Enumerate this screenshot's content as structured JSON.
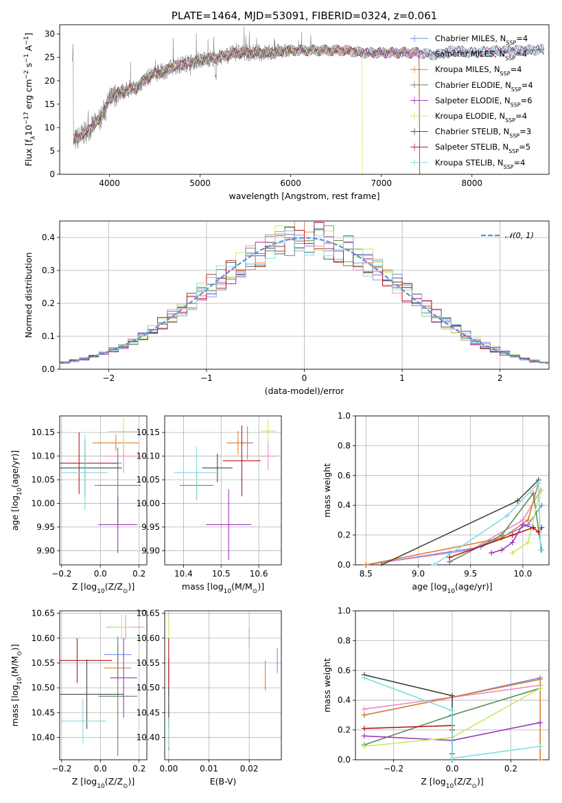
{
  "colors": {
    "Chabrier MILES": "#6b8ee8",
    "Salpeter MILES": "#e889c0",
    "Kroupa MILES": "#e07b2a",
    "Chabrier ELODIE": "#5a8a5a",
    "Salpeter ELODIE": "#9b35b8",
    "Kroupa ELODIE": "#c9e85a",
    "Chabrier STELIB": "#444444",
    "Salpeter STELIB": "#b51414",
    "Kroupa STELIB": "#80dbe0",
    "data": "#808080",
    "normal": "#5b8ee0"
  },
  "chart_data": [
    {
      "id": "spectrum",
      "type": "line",
      "title": "PLATE=1464, MJD=53091, FIBERID=0324, z=0.061",
      "xlabel": "wavelength [Angstrom, rest frame]",
      "ylabel": "Flux [f",
      "ylabel_sub": "λ",
      "ylabel_rest": "10",
      "ylabel_sup1": "−17",
      "ylabel_mid": " erg cm",
      "ylabel_sup2": "−2",
      "ylabel_mid2": " s",
      "ylabel_sup3": "−1",
      "ylabel_end": " A",
      "ylabel_sup4": "−1",
      "ylabel_close": "]",
      "xlim": [
        3450,
        8850
      ],
      "ylim": [
        0,
        32
      ],
      "xticks": [
        "4000",
        "5000",
        "6000",
        "7000",
        "8000"
      ],
      "yticks": [
        "0",
        "5",
        "10",
        "15",
        "20",
        "25",
        "30"
      ],
      "legend": [
        {
          "model": "Chabrier MILES",
          "prefix": "Chabrier MILES, N",
          "sub": "SSP",
          "suffix": "=4"
        },
        {
          "model": "Salpeter MILES",
          "prefix": "Salpeter MILES, N",
          "sub": "SSP",
          "suffix": "=4"
        },
        {
          "model": "Kroupa MILES",
          "prefix": "Kroupa MILES, N",
          "sub": "SSP",
          "suffix": "=4"
        },
        {
          "model": "Chabrier ELODIE",
          "prefix": "Chabrier ELODIE, N",
          "sub": "SSP",
          "suffix": "=4"
        },
        {
          "model": "Salpeter ELODIE",
          "prefix": "Salpeter ELODIE, N",
          "sub": "SSP",
          "suffix": "=6"
        },
        {
          "model": "Kroupa ELODIE",
          "prefix": "Kroupa ELODIE, N",
          "sub": "SSP",
          "suffix": "=4"
        },
        {
          "model": "Chabrier STELIB",
          "prefix": "Chabrier STELIB, N",
          "sub": "SSP",
          "suffix": "=3"
        },
        {
          "model": "Salpeter STELIB",
          "prefix": "Salpeter STELIB, N",
          "sub": "SSP",
          "suffix": "=5"
        },
        {
          "model": "Kroupa STELIB",
          "prefix": "Kroupa STELIB, N",
          "sub": "SSP",
          "suffix": "=4"
        }
      ],
      "continuum": {
        "x": [
          3600,
          3700,
          3800,
          3900,
          4000,
          4100,
          4200,
          4300,
          4400,
          4500,
          4600,
          4700,
          4800,
          5000,
          5200,
          5400,
          5600,
          5800,
          6000,
          6200,
          6400,
          6600,
          6800,
          7000,
          7200,
          7400,
          7600,
          7800,
          8000,
          8200,
          8400,
          8600,
          8800
        ],
        "y": [
          7,
          8.5,
          10,
          12,
          16,
          17.5,
          18,
          18.5,
          20.5,
          21.5,
          22,
          23,
          23.5,
          24.5,
          25,
          26,
          26,
          26,
          26.5,
          26.5,
          26.5,
          26.5,
          26,
          26,
          26,
          26,
          25.5,
          26.5,
          26,
          26.3,
          26.5,
          26.5,
          26.7
        ]
      }
    },
    {
      "id": "residuals",
      "type": "bar",
      "xlabel": "(data-model)/error",
      "ylabel": "Normed distribution",
      "xlim": [
        -2.5,
        2.5
      ],
      "ylim": [
        0,
        0.45
      ],
      "xticks": [
        "−2",
        "−1",
        "0",
        "1",
        "2"
      ],
      "yticks": [
        "0.0",
        "0.1",
        "0.2",
        "0.3",
        "0.4"
      ],
      "legend_label": "𝒩(0, 1)"
    },
    {
      "id": "age-vs-Z",
      "type": "scatter",
      "xlabel": "Z [log",
      "xlabel_sub": "10",
      "xlabel_end": "(Z/Z",
      "xlabel_sub2": "⊙",
      "xlabel_close": ")]",
      "ylabel": "age  [log",
      "ylabel_sub": "10",
      "ylabel_end": "(age/yr)]",
      "xlim": [
        -0.21,
        0.24
      ],
      "ylim": [
        9.87,
        10.185
      ],
      "xticks": [
        "−0.2",
        "0.0",
        "0.2"
      ],
      "yticks": [
        "9.90",
        "9.95",
        "10.00",
        "10.05",
        "10.10",
        "10.15"
      ],
      "points": [
        {
          "model": "Chabrier MILES",
          "x": 0.09,
          "xerr": 0.02,
          "y": 10.085,
          "yerr": 0.015
        },
        {
          "model": "Salpeter MILES",
          "x": 0.12,
          "xerr": 0.1,
          "y": 10.1,
          "yerr": 0.035
        },
        {
          "model": "Kroupa MILES",
          "x": 0.08,
          "xerr": 0.12,
          "y": 10.128,
          "yerr": 0.018
        },
        {
          "model": "Chabrier ELODIE",
          "x": 0.09,
          "xerr": 0.12,
          "y": 10.038,
          "yerr": 0.08
        },
        {
          "model": "Salpeter ELODIE",
          "x": 0.09,
          "xerr": 0.1,
          "y": 9.955,
          "yerr": 0.06
        },
        {
          "model": "Kroupa ELODIE",
          "x": 0.12,
          "xerr": 0.08,
          "y": 10.152,
          "yerr": 0.03
        },
        {
          "model": "Chabrier STELIB",
          "x": -0.08,
          "xerr": 0.19,
          "y": 10.075,
          "yerr": 0.06
        },
        {
          "model": "Salpeter STELIB",
          "x": -0.11,
          "xerr": 0.2,
          "y": 10.085,
          "yerr": 0.065
        },
        {
          "model": "Kroupa STELIB",
          "x": -0.08,
          "xerr": 0.12,
          "y": 10.065,
          "yerr": 0.08
        }
      ]
    },
    {
      "id": "age-vs-mass",
      "type": "scatter",
      "xlabel": "mass [log",
      "xlabel_sub": "10",
      "xlabel_end": "(M/M",
      "xlabel_sub2": "⊙",
      "xlabel_close": ")]",
      "xlim": [
        10.35,
        10.66
      ],
      "ylim": [
        9.87,
        10.185
      ],
      "xticks": [
        "10.4",
        "10.5",
        "10.6"
      ],
      "yticks": [
        "9.90",
        "9.95",
        "10.00",
        "10.05",
        "10.10",
        "10.15"
      ],
      "points": [
        {
          "model": "Chabrier MILES",
          "x": 10.57,
          "xerr": 0.015,
          "y": 10.128,
          "yerr": 0.035
        },
        {
          "model": "Salpeter MILES",
          "x": 10.625,
          "xerr": 0.02,
          "y": 10.1,
          "yerr": 0.03
        },
        {
          "model": "Kroupa MILES",
          "x": 10.545,
          "xerr": 0.03,
          "y": 10.128,
          "yerr": 0.025
        },
        {
          "model": "Chabrier ELODIE",
          "x": 10.435,
          "xerr": 0.045,
          "y": 10.038,
          "yerr": 0.03
        },
        {
          "model": "Salpeter ELODIE",
          "x": 10.52,
          "xerr": 0.06,
          "y": 9.955,
          "yerr": 0.075
        },
        {
          "model": "Kroupa ELODIE",
          "x": 10.625,
          "xerr": 0.02,
          "y": 10.153,
          "yerr": 0.025
        },
        {
          "model": "Chabrier STELIB",
          "x": 10.49,
          "xerr": 0.04,
          "y": 10.075,
          "yerr": 0.03
        },
        {
          "model": "Salpeter STELIB",
          "x": 10.555,
          "xerr": 0.05,
          "y": 10.09,
          "yerr": 0.075
        },
        {
          "model": "Kroupa STELIB",
          "x": 10.435,
          "xerr": 0.06,
          "y": 10.065,
          "yerr": 0.055
        }
      ]
    },
    {
      "id": "weight-vs-age",
      "type": "line",
      "xlabel": "age  [log",
      "xlabel_sub": "10",
      "xlabel_end": "(age/yr)]",
      "ylabel": "mass weight",
      "xlim": [
        8.4,
        10.25
      ],
      "ylim": [
        0,
        1.0
      ],
      "xticks": [
        "8.5",
        "9.0",
        "9.5",
        "10.0"
      ],
      "yticks": [
        "0.0",
        "0.2",
        "0.4",
        "0.6",
        "0.8",
        "1.0"
      ],
      "series": [
        {
          "model": "Chabrier MILES",
          "x": [
            8.5,
            9.6,
            10.05,
            10.18
          ],
          "y": [
            0.0,
            0.12,
            0.27,
            0.4
          ]
        },
        {
          "model": "Salpeter MILES",
          "x": [
            8.5,
            9.5,
            10.0,
            10.17
          ],
          "y": [
            0.0,
            0.1,
            0.3,
            0.5
          ]
        },
        {
          "model": "Kroupa MILES",
          "x": [
            8.5,
            9.8,
            10.05,
            10.15
          ],
          "y": [
            0.0,
            0.18,
            0.3,
            0.55
          ]
        },
        {
          "model": "Chabrier ELODIE",
          "x": [
            9.3,
            9.8,
            10.1,
            10.18
          ],
          "y": [
            0.02,
            0.2,
            0.48,
            0.1
          ]
        },
        {
          "model": "Salpeter ELODIE",
          "x": [
            9.7,
            9.8,
            9.9,
            10.0,
            10.1
          ],
          "y": [
            0.08,
            0.1,
            0.15,
            0.27,
            0.25
          ]
        },
        {
          "model": "Kroupa ELODIE",
          "x": [
            9.9,
            10.05,
            10.15,
            10.18
          ],
          "y": [
            0.08,
            0.15,
            0.45,
            0.5
          ]
        },
        {
          "model": "Chabrier STELIB",
          "x": [
            8.65,
            9.95,
            10.15
          ],
          "y": [
            0.0,
            0.43,
            0.57
          ]
        },
        {
          "model": "Salpeter STELIB",
          "x": [
            9.3,
            9.9,
            10.1,
            10.15,
            10.18
          ],
          "y": [
            0.05,
            0.2,
            0.25,
            0.22,
            0.25
          ]
        },
        {
          "model": "Kroupa STELIB",
          "x": [
            9.15,
            9.85,
            10.15,
            10.17
          ],
          "y": [
            0.0,
            0.33,
            0.55,
            0.1
          ]
        }
      ]
    },
    {
      "id": "mass-vs-Z",
      "type": "scatter",
      "xlabel": "Z [log",
      "xlabel_sub": "10",
      "xlabel_end": "(Z/Z",
      "xlabel_sub2": "⊙",
      "xlabel_close": ")]",
      "ylabel": "mass [log",
      "ylabel_sub": "10",
      "ylabel_end": "(M/M",
      "ylabel_sub2": "⊙",
      "ylabel_close": ")]",
      "xlim": [
        -0.21,
        0.24
      ],
      "ylim": [
        10.355,
        10.655
      ],
      "xticks": [
        "−0.2",
        "0.0",
        "0.2"
      ],
      "yticks": [
        "10.40",
        "10.45",
        "10.50",
        "10.55",
        "10.60",
        "10.65"
      ],
      "points": [
        {
          "model": "Chabrier MILES",
          "x": 0.09,
          "xerr": 0.07,
          "y": 10.567,
          "yerr": 0.02
        },
        {
          "model": "Salpeter MILES",
          "x": 0.13,
          "xerr": 0.1,
          "y": 10.622,
          "yerr": 0.025
        },
        {
          "model": "Kroupa MILES",
          "x": 0.09,
          "xerr": 0.07,
          "y": 10.54,
          "yerr": 0.025
        },
        {
          "model": "Chabrier ELODIE",
          "x": 0.09,
          "xerr": 0.1,
          "y": 10.483,
          "yerr": 0.12
        },
        {
          "model": "Salpeter ELODIE",
          "x": 0.12,
          "xerr": 0.07,
          "y": 10.52,
          "yerr": 0.08
        },
        {
          "model": "Kroupa ELODIE",
          "x": 0.11,
          "xerr": 0.05,
          "y": 10.622,
          "yerr": 0.025
        },
        {
          "model": "Chabrier STELIB",
          "x": -0.07,
          "xerr": 0.19,
          "y": 10.487,
          "yerr": 0.07
        },
        {
          "model": "Salpeter STELIB",
          "x": -0.12,
          "xerr": 0.18,
          "y": 10.555,
          "yerr": 0.045
        },
        {
          "model": "Kroupa STELIB",
          "x": -0.09,
          "xerr": 0.12,
          "y": 10.433,
          "yerr": 0.045
        }
      ]
    },
    {
      "id": "mass-vs-EBV",
      "type": "scatter",
      "xlabel": "E(B-V)",
      "xlim": [
        -0.001,
        0.028
      ],
      "ylim": [
        10.355,
        10.655
      ],
      "xticks": [
        "0.00",
        "0.01",
        "0.02"
      ],
      "yticks": [
        "10.40",
        "10.45",
        "10.50",
        "10.55",
        "10.60",
        "10.65"
      ],
      "points": [
        {
          "model": "Chabrier MILES",
          "x": 0.027,
          "xerr": 0.0,
          "y": 10.555,
          "yerr": 0.025
        },
        {
          "model": "Salpeter MILES",
          "x": 0.02,
          "xerr": 0.0,
          "y": 10.6,
          "yerr": 0.02
        },
        {
          "model": "Kroupa MILES",
          "x": 0.024,
          "xerr": 0.0,
          "y": 10.525,
          "yerr": 0.03
        },
        {
          "model": "Chabrier ELODIE",
          "x": 0.0,
          "xerr": 0.0,
          "y": 10.42,
          "yerr": 0.045
        },
        {
          "model": "Salpeter ELODIE",
          "x": 0.0,
          "xerr": 0.0,
          "y": 10.52,
          "yerr": 0.04
        },
        {
          "model": "Kroupa ELODIE",
          "x": 0.0,
          "xerr": 0.0,
          "y": 10.62,
          "yerr": 0.025
        },
        {
          "model": "Chabrier STELIB",
          "x": 0.0,
          "xerr": 0.0,
          "y": 10.46,
          "yerr": 0.04
        },
        {
          "model": "Salpeter STELIB",
          "x": 0.0,
          "xerr": 0.0,
          "y": 10.55,
          "yerr": 0.05
        },
        {
          "model": "Kroupa STELIB",
          "x": 0.0,
          "xerr": 0.0,
          "y": 10.41,
          "yerr": 0.03
        }
      ]
    },
    {
      "id": "weight-vs-Z",
      "type": "line",
      "xlabel": "Z [log",
      "xlabel_sub": "10",
      "xlabel_end": "(Z/Z",
      "xlabel_sub2": "⊙",
      "xlabel_close": ")]",
      "ylabel": "mass weight",
      "xlim": [
        -0.33,
        0.33
      ],
      "ylim": [
        0,
        1.0
      ],
      "xticks": [
        "−0.2",
        "0.0",
        "0.2"
      ],
      "yticks": [
        "0.0",
        "0.2",
        "0.4",
        "0.6",
        "0.8",
        "1.0"
      ],
      "series": [
        {
          "model": "Chabrier MILES",
          "x": [
            -0.3,
            0.0,
            0.3
          ],
          "y": [
            0.3,
            0.42,
            0.55
          ]
        },
        {
          "model": "Salpeter MILES",
          "x": [
            -0.3,
            0.0,
            0.3
          ],
          "y": [
            0.34,
            0.42,
            0.5
          ]
        },
        {
          "model": "Kroupa MILES",
          "x": [
            -0.3,
            0.0,
            0.3,
            0.3
          ],
          "y": [
            0.3,
            0.42,
            0.54,
            0.0
          ]
        },
        {
          "model": "Chabrier ELODIE",
          "x": [
            -0.3,
            0.0,
            0.3
          ],
          "y": [
            0.1,
            0.3,
            0.48
          ]
        },
        {
          "model": "Salpeter ELODIE",
          "x": [
            -0.3,
            0.0,
            0.3
          ],
          "y": [
            0.16,
            0.13,
            0.25
          ]
        },
        {
          "model": "Kroupa ELODIE",
          "x": [
            -0.3,
            0.0,
            0.3
          ],
          "y": [
            0.09,
            0.15,
            0.48
          ]
        },
        {
          "model": "Chabrier STELIB",
          "x": [
            -0.3,
            0.0,
            0.0
          ],
          "y": [
            0.57,
            0.43,
            0.04
          ]
        },
        {
          "model": "Salpeter STELIB",
          "x": [
            -0.3,
            0.0,
            0.0
          ],
          "y": [
            0.21,
            0.23,
            0.2
          ]
        },
        {
          "model": "Kroupa STELIB",
          "x": [
            -0.3,
            0.0,
            0.0,
            0.3
          ],
          "y": [
            0.55,
            0.33,
            0.01,
            0.09
          ]
        }
      ]
    }
  ]
}
